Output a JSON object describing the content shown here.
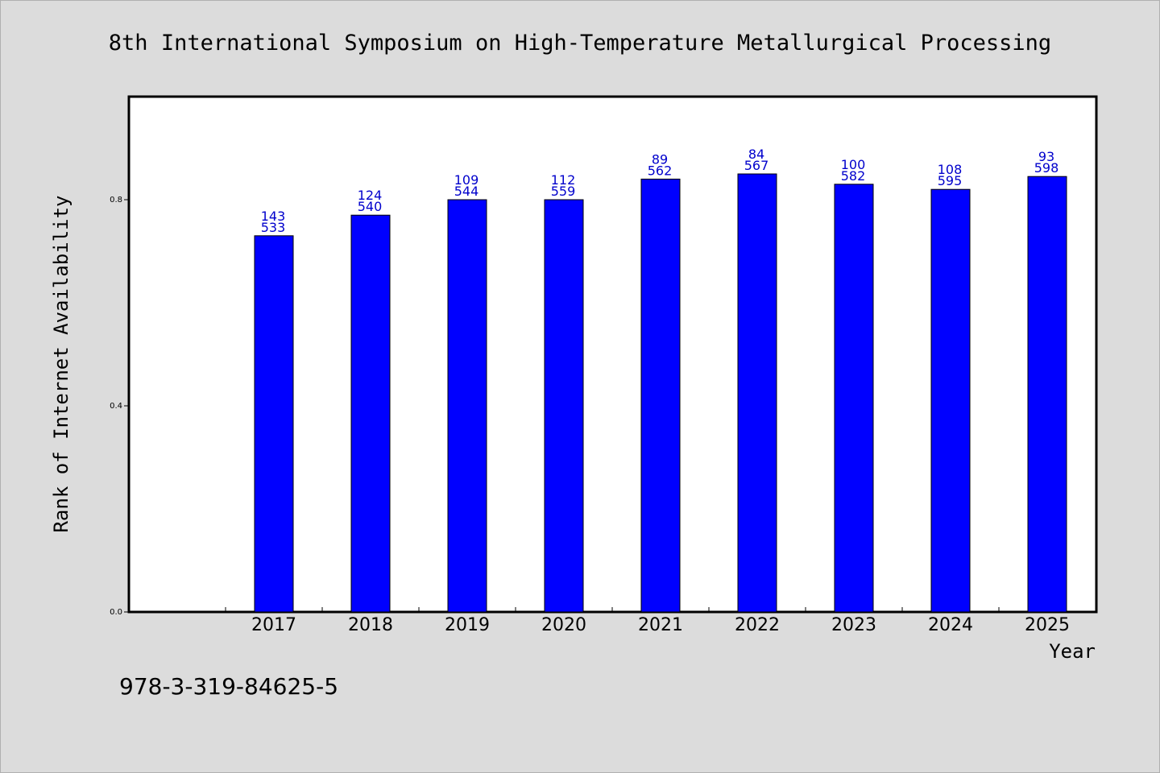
{
  "chart_data": {
    "type": "bar",
    "title": "8th International Symposium on High-Temperature Metallurgical Processing",
    "xlabel": "Year",
    "ylabel": "Rank of Internet Availability",
    "categories": [
      "2017",
      "2018",
      "2019",
      "2020",
      "2021",
      "2022",
      "2023",
      "2024",
      "2025"
    ],
    "values": [
      0.73,
      0.77,
      0.8,
      0.8,
      0.84,
      0.85,
      0.83,
      0.82,
      0.845
    ],
    "label_top": [
      "143",
      "124",
      "109",
      "112",
      "89",
      "84",
      "100",
      "108",
      "93"
    ],
    "label_bottom": [
      "533",
      "540",
      "544",
      "559",
      "562",
      "567",
      "582",
      "595",
      "598"
    ],
    "yticks": [
      "0.0",
      "0.4",
      "0.8"
    ],
    "ytick_values": [
      0.0,
      0.4,
      0.8
    ],
    "ylim": [
      0,
      1.0
    ],
    "grid": false,
    "bar_color": "#0000ff",
    "label_color": "#0000cc"
  },
  "footer_text": "978-3-319-84625-5"
}
